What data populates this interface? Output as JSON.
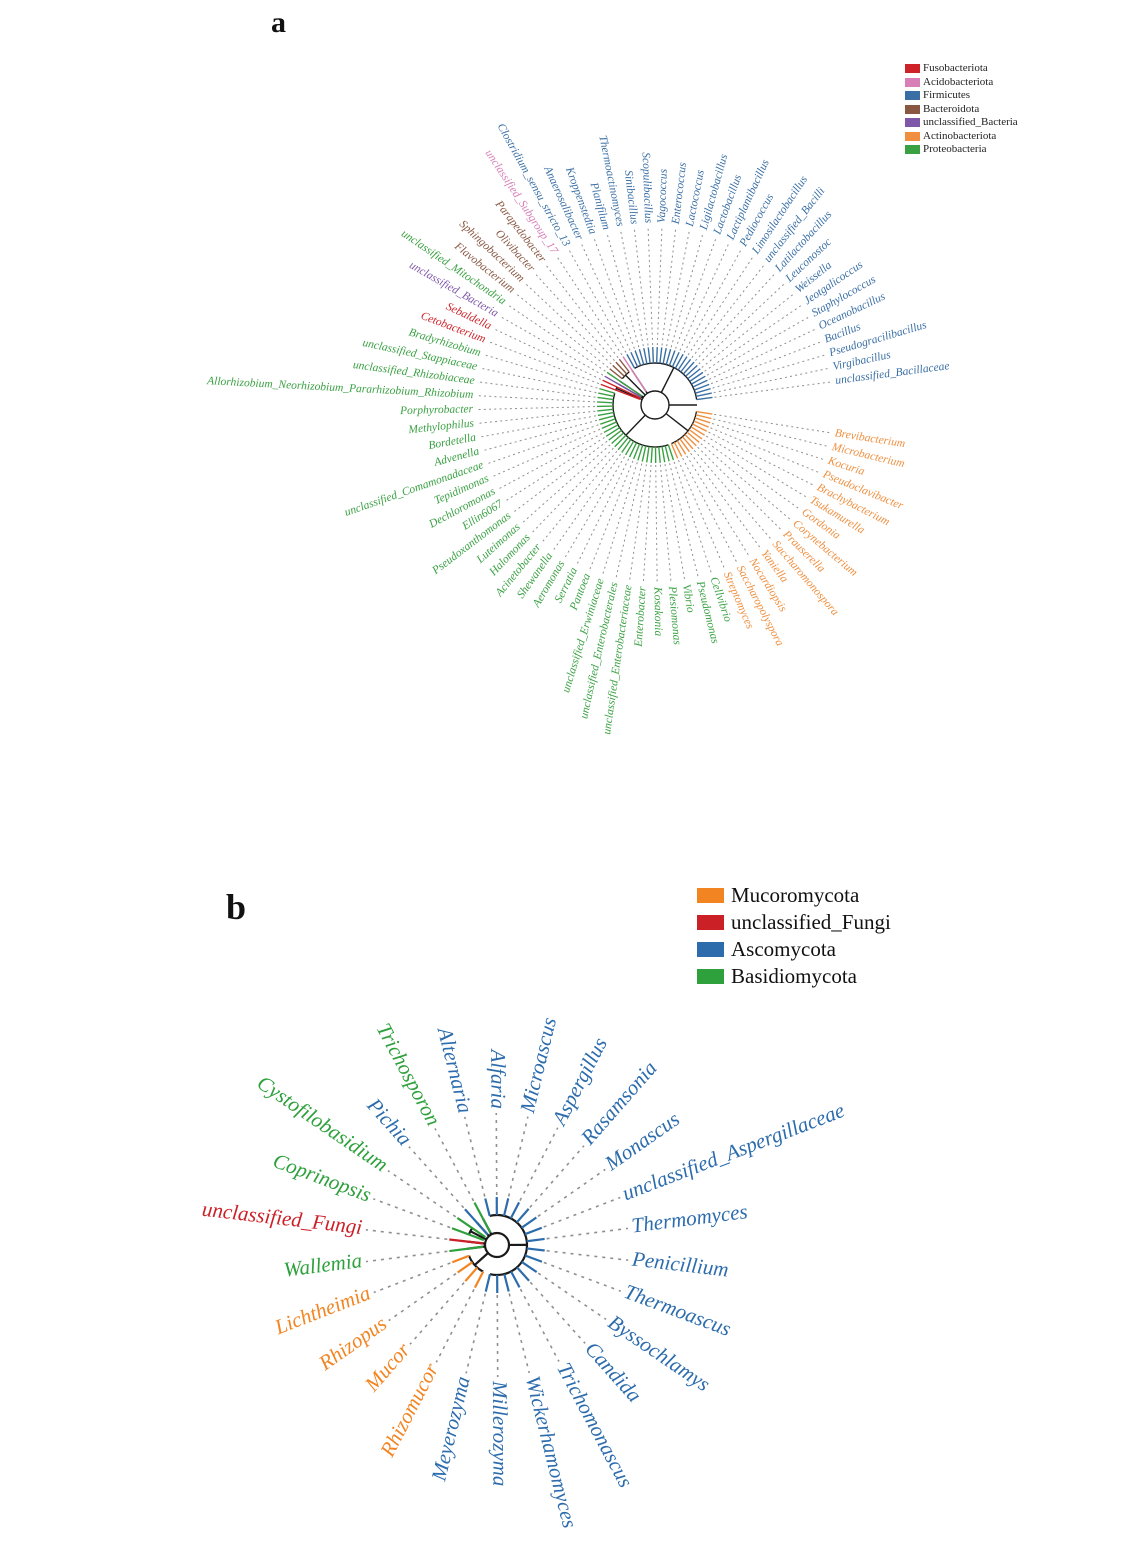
{
  "figure": {
    "panels": [
      {
        "id": "a",
        "panel_label": "a",
        "legend": [
          {
            "label": "Fusobacteriota",
            "color": "#cf2128"
          },
          {
            "label": "Acidobacteriota",
            "color": "#d77fb6"
          },
          {
            "label": "Firmicutes",
            "color": "#3a6fa5"
          },
          {
            "label": "Bacteroidota",
            "color": "#8a5742"
          },
          {
            "label": "unclassified_Bacteria",
            "color": "#7e57a8"
          },
          {
            "label": "Actinobacteriota",
            "color": "#ef8f3f"
          },
          {
            "label": "Proteobacteria",
            "color": "#3aa143"
          }
        ],
        "leaves": [
          {
            "name": "Clostridium_sensu_stricto_13",
            "group": "Firmicutes"
          },
          {
            "name": "Anaerosalibacter",
            "group": "Firmicutes"
          },
          {
            "name": "Kroppenstedtia",
            "group": "Firmicutes"
          },
          {
            "name": "Planifilum",
            "group": "Firmicutes"
          },
          {
            "name": "Thermoactinomyces",
            "group": "Firmicutes"
          },
          {
            "name": "Sinibacillus",
            "group": "Firmicutes"
          },
          {
            "name": "Scopulibacillus",
            "group": "Firmicutes"
          },
          {
            "name": "Vagococcus",
            "group": "Firmicutes"
          },
          {
            "name": "Enterococcus",
            "group": "Firmicutes"
          },
          {
            "name": "Lactococcus",
            "group": "Firmicutes"
          },
          {
            "name": "Ligilactobacillus",
            "group": "Firmicutes"
          },
          {
            "name": "Lactobacillus",
            "group": "Firmicutes"
          },
          {
            "name": "Lactiplantibacillus",
            "group": "Firmicutes"
          },
          {
            "name": "Pediococcus",
            "group": "Firmicutes"
          },
          {
            "name": "Limosilactobacillus",
            "group": "Firmicutes"
          },
          {
            "name": "unclassified_Bacilli",
            "group": "Firmicutes"
          },
          {
            "name": "Latilactobacillus",
            "group": "Firmicutes"
          },
          {
            "name": "Leuconostoc",
            "group": "Firmicutes"
          },
          {
            "name": "Weissella",
            "group": "Firmicutes"
          },
          {
            "name": "Jeotgalicoccus",
            "group": "Firmicutes"
          },
          {
            "name": "Staphylococcus",
            "group": "Firmicutes"
          },
          {
            "name": "Oceanobacillus",
            "group": "Firmicutes"
          },
          {
            "name": "Bacillus",
            "group": "Firmicutes"
          },
          {
            "name": "Pseudogracilibacillus",
            "group": "Firmicutes"
          },
          {
            "name": "Virgibacillus",
            "group": "Firmicutes"
          },
          {
            "name": "unclassified_Bacillaceae",
            "group": "Firmicutes"
          },
          {
            "name": "Brevibacterium",
            "group": "Actinobacteriota"
          },
          {
            "name": "Microbacterium",
            "group": "Actinobacteriota"
          },
          {
            "name": "Kocuria",
            "group": "Actinobacteriota"
          },
          {
            "name": "Pseudoclavibacter",
            "group": "Actinobacteriota"
          },
          {
            "name": "Brachybacterium",
            "group": "Actinobacteriota"
          },
          {
            "name": "Tsukamurella",
            "group": "Actinobacteriota"
          },
          {
            "name": "Gordonia",
            "group": "Actinobacteriota"
          },
          {
            "name": "Corynebacterium",
            "group": "Actinobacteriota"
          },
          {
            "name": "Prauserella",
            "group": "Actinobacteriota"
          },
          {
            "name": "Saccharomonospora",
            "group": "Actinobacteriota"
          },
          {
            "name": "Yaniella",
            "group": "Actinobacteriota"
          },
          {
            "name": "Nocardiopsis",
            "group": "Actinobacteriota"
          },
          {
            "name": "Saccharopolyspora",
            "group": "Actinobacteriota"
          },
          {
            "name": "Streptomyces",
            "group": "Actinobacteriota"
          },
          {
            "name": "Cellvibrio",
            "group": "Proteobacteria"
          },
          {
            "name": "Pseudomonas",
            "group": "Proteobacteria"
          },
          {
            "name": "Vibrio",
            "group": "Proteobacteria"
          },
          {
            "name": "Plesiomonas",
            "group": "Proteobacteria"
          },
          {
            "name": "Kosakonia",
            "group": "Proteobacteria"
          },
          {
            "name": "Enterobacter",
            "group": "Proteobacteria"
          },
          {
            "name": "unclassified_Enterobacteriaceae",
            "group": "Proteobacteria"
          },
          {
            "name": "unclassified_Enterobacterales",
            "group": "Proteobacteria"
          },
          {
            "name": "unclassified_Erwiniaceae",
            "group": "Proteobacteria"
          },
          {
            "name": "Pantoea",
            "group": "Proteobacteria"
          },
          {
            "name": "Serratia",
            "group": "Proteobacteria"
          },
          {
            "name": "Aeromonas",
            "group": "Proteobacteria"
          },
          {
            "name": "Shewanella",
            "group": "Proteobacteria"
          },
          {
            "name": "Acinetobacter",
            "group": "Proteobacteria"
          },
          {
            "name": "Halomonas",
            "group": "Proteobacteria"
          },
          {
            "name": "Luteimonas",
            "group": "Proteobacteria"
          },
          {
            "name": "Pseudoxanthomonas",
            "group": "Proteobacteria"
          },
          {
            "name": "Ellin6067",
            "group": "Proteobacteria"
          },
          {
            "name": "Dechloromonas",
            "group": "Proteobacteria"
          },
          {
            "name": "Tepidimonas",
            "group": "Proteobacteria"
          },
          {
            "name": "unclassified_Comamonadaceae",
            "group": "Proteobacteria"
          },
          {
            "name": "Advenella",
            "group": "Proteobacteria"
          },
          {
            "name": "Bordetella",
            "group": "Proteobacteria"
          },
          {
            "name": "Methylophilus",
            "group": "Proteobacteria"
          },
          {
            "name": "Porphyrobacter",
            "group": "Proteobacteria"
          },
          {
            "name": "Allorhizobium_Neorhizobium_Pararhizobium_Rhizobium",
            "group": "Proteobacteria"
          },
          {
            "name": "unclassified_Rhizobiaceae",
            "group": "Proteobacteria"
          },
          {
            "name": "unclassified_Stappiaceae",
            "group": "Proteobacteria"
          },
          {
            "name": "Bradyrhizobium",
            "group": "Proteobacteria"
          },
          {
            "name": "Cetobacterium",
            "group": "Fusobacteriota"
          },
          {
            "name": "Sebaldella",
            "group": "Fusobacteriota"
          },
          {
            "name": "unclassified_Bacteria",
            "group": "unclassified_Bacteria"
          },
          {
            "name": "unclassified_Mitochondria",
            "group": "Proteobacteria"
          },
          {
            "name": "Flavobacterium",
            "group": "Bacteroidota"
          },
          {
            "name": "Sphingobacterium",
            "group": "Bacteroidota"
          },
          {
            "name": "Olivibacter",
            "group": "Bacteroidota"
          },
          {
            "name": "Parapedobacter",
            "group": "Bacteroidota"
          },
          {
            "name": "unclassified_Subgroup_17",
            "group": "Acidobacteriota"
          }
        ]
      },
      {
        "id": "b",
        "panel_label": "b",
        "legend": [
          {
            "label": "Mucoromycota",
            "color": "#f28522"
          },
          {
            "label": "unclassified_Fungi",
            "color": "#cb2026"
          },
          {
            "label": "Ascomycota",
            "color": "#2c6cad"
          },
          {
            "label": "Basidiomycota",
            "color": "#2ea03c"
          }
        ],
        "leaves": [
          {
            "name": "Trichosporon",
            "group": "Basidiomycota"
          },
          {
            "name": "Alternaria",
            "group": "Ascomycota"
          },
          {
            "name": "Alfaria",
            "group": "Ascomycota"
          },
          {
            "name": "Microascus",
            "group": "Ascomycota"
          },
          {
            "name": "Aspergillus",
            "group": "Ascomycota"
          },
          {
            "name": "Rasamsonia",
            "group": "Ascomycota"
          },
          {
            "name": "Monascus",
            "group": "Ascomycota"
          },
          {
            "name": "unclassified_Aspergillaceae",
            "group": "Ascomycota"
          },
          {
            "name": "Thermomyces",
            "group": "Ascomycota"
          },
          {
            "name": "Penicillium",
            "group": "Ascomycota"
          },
          {
            "name": "Thermoascus",
            "group": "Ascomycota"
          },
          {
            "name": "Byssochlamys",
            "group": "Ascomycota"
          },
          {
            "name": "Candida",
            "group": "Ascomycota"
          },
          {
            "name": "Trichomonascus",
            "group": "Ascomycota"
          },
          {
            "name": "Wickerhamomyces",
            "group": "Ascomycota"
          },
          {
            "name": "Millerozyma",
            "group": "Ascomycota"
          },
          {
            "name": "Meyerozyma",
            "group": "Ascomycota"
          },
          {
            "name": "Rhizomucor",
            "group": "Mucoromycota"
          },
          {
            "name": "Mucor",
            "group": "Mucoromycota"
          },
          {
            "name": "Rhizopus",
            "group": "Mucoromycota"
          },
          {
            "name": "Lichtheimia",
            "group": "Mucoromycota"
          },
          {
            "name": "Wallemia",
            "group": "Basidiomycota"
          },
          {
            "name": "unclassified_Fungi",
            "group": "unclassified_Fungi"
          },
          {
            "name": "Coprinopsis",
            "group": "Basidiomycota"
          },
          {
            "name": "Cystofilobasidium",
            "group": "Basidiomycota"
          },
          {
            "name": "Pichia",
            "group": "Ascomycota"
          }
        ]
      }
    ]
  }
}
